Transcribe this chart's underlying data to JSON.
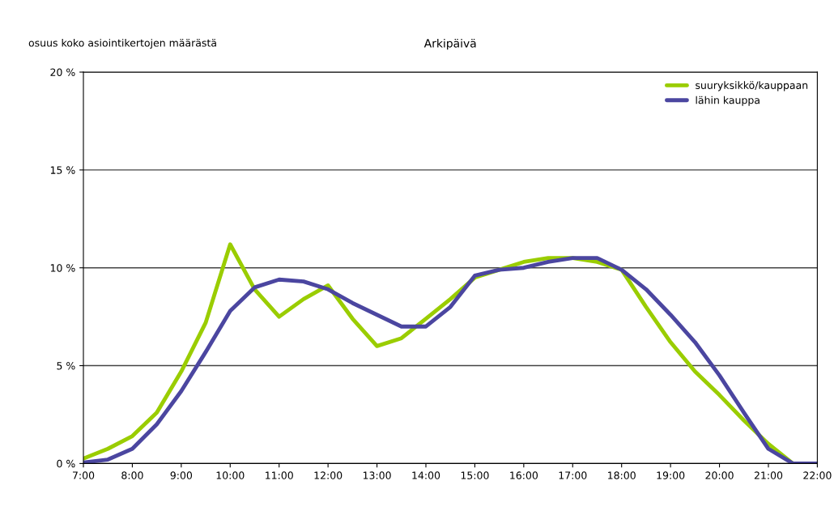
{
  "chart_data": {
    "type": "line",
    "title": "Arkipäivä",
    "ylabel": "osuus koko asiointikertojen määrästä",
    "x": [
      7,
      7.5,
      8,
      8.5,
      9,
      9.5,
      10,
      10.5,
      11,
      11.5,
      12,
      12.5,
      13,
      13.5,
      14,
      14.5,
      15,
      15.5,
      16,
      16.5,
      17,
      17.5,
      18,
      18.5,
      19,
      19.5,
      20,
      20.5,
      21,
      21.5,
      22
    ],
    "series": [
      {
        "name": "suuryksikkö/kauppaan",
        "color": "#9acd00",
        "values": [
          0.25,
          0.75,
          1.4,
          2.6,
          4.7,
          7.2,
          11.2,
          8.9,
          7.5,
          8.4,
          9.1,
          7.4,
          6.0,
          6.4,
          7.4,
          8.4,
          9.5,
          9.9,
          10.3,
          10.5,
          10.5,
          10.3,
          9.9,
          8.0,
          6.2,
          4.7,
          3.5,
          2.2,
          1.0,
          0,
          0
        ]
      },
      {
        "name": "lähin kauppa",
        "color": "#4b46a0",
        "values": [
          0.05,
          0.2,
          0.75,
          2.0,
          3.7,
          5.7,
          7.8,
          9.0,
          9.4,
          9.3,
          8.9,
          8.2,
          7.6,
          7.0,
          7.0,
          8.0,
          9.6,
          9.9,
          10.0,
          10.3,
          10.5,
          10.5,
          9.9,
          8.9,
          7.6,
          6.2,
          4.5,
          2.6,
          0.75,
          0,
          0
        ]
      }
    ],
    "xlim": [
      7,
      22
    ],
    "xticks": [
      {
        "value": 7,
        "label": "7:00"
      },
      {
        "value": 8,
        "label": "8:00"
      },
      {
        "value": 9,
        "label": "9:00"
      },
      {
        "value": 10,
        "label": "10:00"
      },
      {
        "value": 11,
        "label": "11:00"
      },
      {
        "value": 12,
        "label": "12:00"
      },
      {
        "value": 13,
        "label": "13:00"
      },
      {
        "value": 14,
        "label": "14:00"
      },
      {
        "value": 15,
        "label": "15:00"
      },
      {
        "value": 16,
        "label": "16:00"
      },
      {
        "value": 17,
        "label": "17:00"
      },
      {
        "value": 18,
        "label": "18:00"
      },
      {
        "value": 19,
        "label": "19:00"
      },
      {
        "value": 20,
        "label": "20:00"
      },
      {
        "value": 21,
        "label": "21:00"
      },
      {
        "value": 22,
        "label": "22:00"
      }
    ],
    "ylim": [
      0,
      20
    ],
    "yticks": [
      {
        "value": 0,
        "label": "0 %"
      },
      {
        "value": 5,
        "label": "5 %"
      },
      {
        "value": 10,
        "label": "10 %"
      },
      {
        "value": 15,
        "label": "15 %"
      },
      {
        "value": 20,
        "label": "20 %"
      }
    ],
    "grid": "y",
    "legend": "top right",
    "marker": "none",
    "line_style": "solid"
  }
}
